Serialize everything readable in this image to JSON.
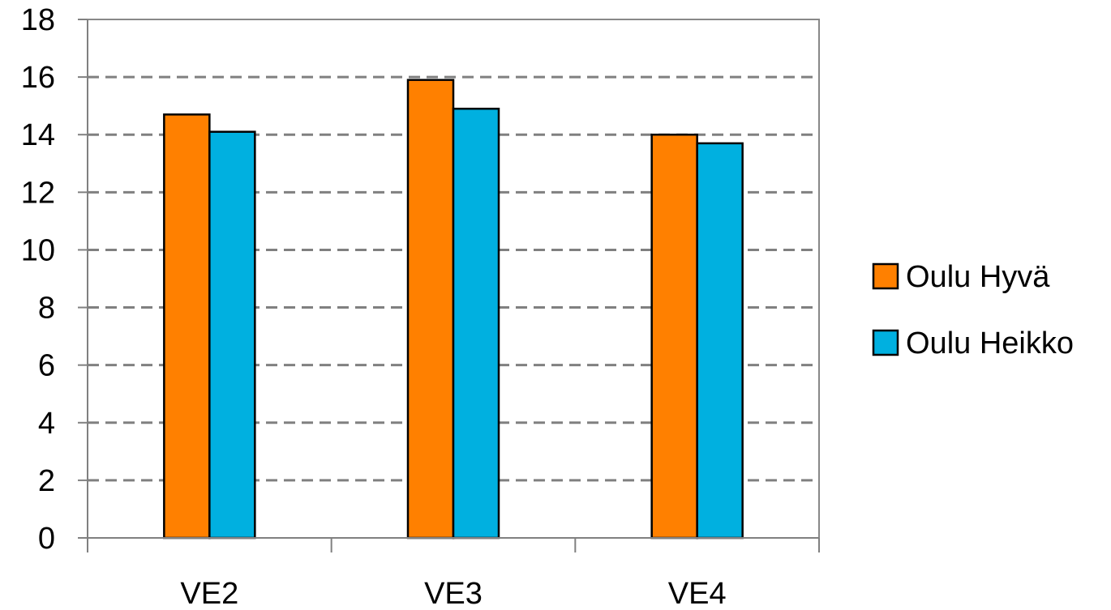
{
  "chart_data": {
    "type": "bar",
    "categories": [
      "VE2",
      "VE3",
      "VE4"
    ],
    "series": [
      {
        "name": "Oulu Hyvä",
        "color": "#ff8000",
        "values": [
          14.7,
          15.9,
          14.0
        ]
      },
      {
        "name": "Oulu Heikko",
        "color": "#00b0e0",
        "values": [
          14.1,
          14.9,
          13.7
        ]
      }
    ],
    "ylim": [
      0,
      18
    ],
    "yticks": [
      "0",
      "2",
      "4",
      "6",
      "8",
      "10",
      "12",
      "14",
      "16",
      "18"
    ],
    "grid": true,
    "grid_style": "dashed",
    "legend_position": "right",
    "title": "",
    "xlabel": "",
    "ylabel": ""
  }
}
